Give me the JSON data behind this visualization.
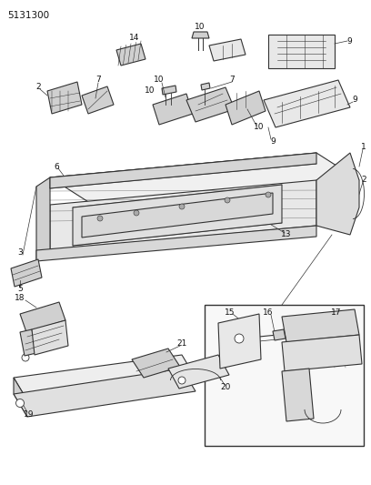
{
  "title_code": "5131300",
  "bg_color": "#ffffff",
  "lc": "#333333",
  "fig_width": 4.08,
  "fig_height": 5.33,
  "dpi": 100
}
